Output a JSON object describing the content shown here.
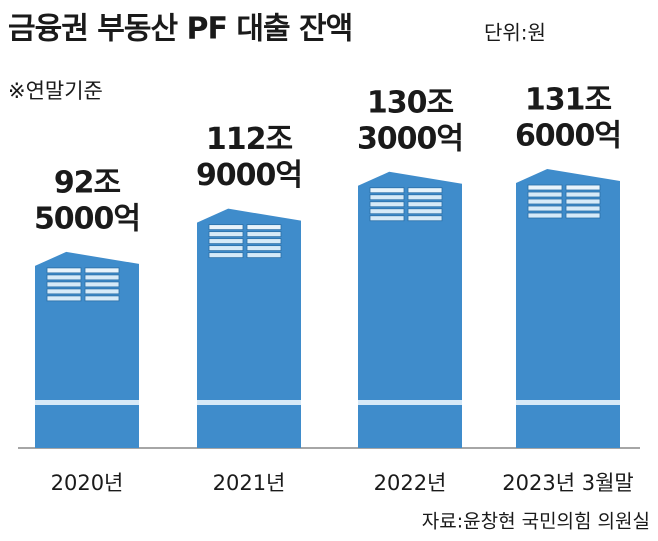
{
  "chart_data": {
    "type": "bar",
    "title": "금융권 부동산 PF 대출 잔액",
    "unit_note": "단위:원",
    "subtitle": "※연말기준",
    "source": "자료:윤창현 국민의힘 의원실",
    "categories": [
      "2020년",
      "2021년",
      "2022년",
      "2023년 3월말"
    ],
    "values": [
      92.5,
      112.9,
      130.3,
      131.6
    ],
    "value_labels": [
      [
        "92조",
        "5000억"
      ],
      [
        "112조",
        "9000억"
      ],
      [
        "130조",
        "3000억"
      ],
      [
        "131조",
        "6000억"
      ]
    ],
    "color": "#3f8ccb"
  }
}
